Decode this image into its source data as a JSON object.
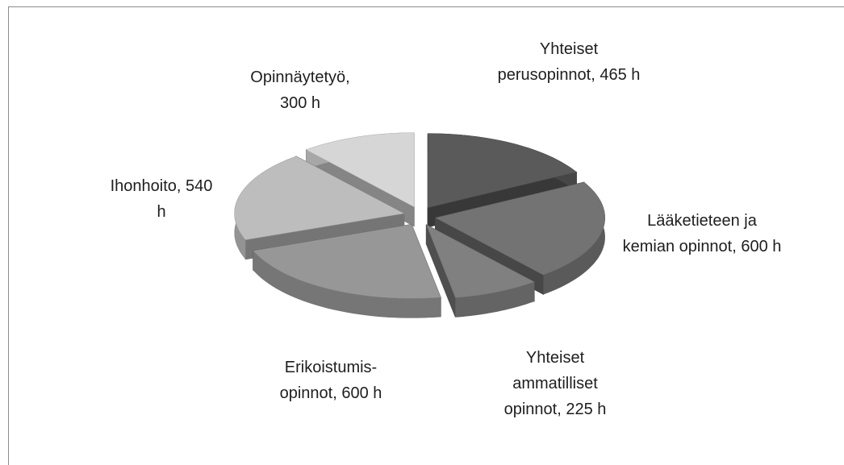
{
  "chart_data": {
    "type": "pie",
    "three_d": true,
    "exploded": true,
    "value_labels": [
      "Yhteiset perusopinnot, 465 h",
      "Lääketieteen ja kemian opinnot, 600 h",
      "Yhteiset ammatilliset opinnot, 225 h",
      "Erikoistumis-opinnot, 600 h",
      "Ihonhoito, 540 h",
      "Opinnäytetyö, 300 h"
    ],
    "values": [
      465,
      600,
      225,
      600,
      540,
      300
    ],
    "colors": [
      "#5a5a5a",
      "#737373",
      "#808080",
      "#979797",
      "#bdbdbd",
      "#d6d6d6"
    ]
  }
}
